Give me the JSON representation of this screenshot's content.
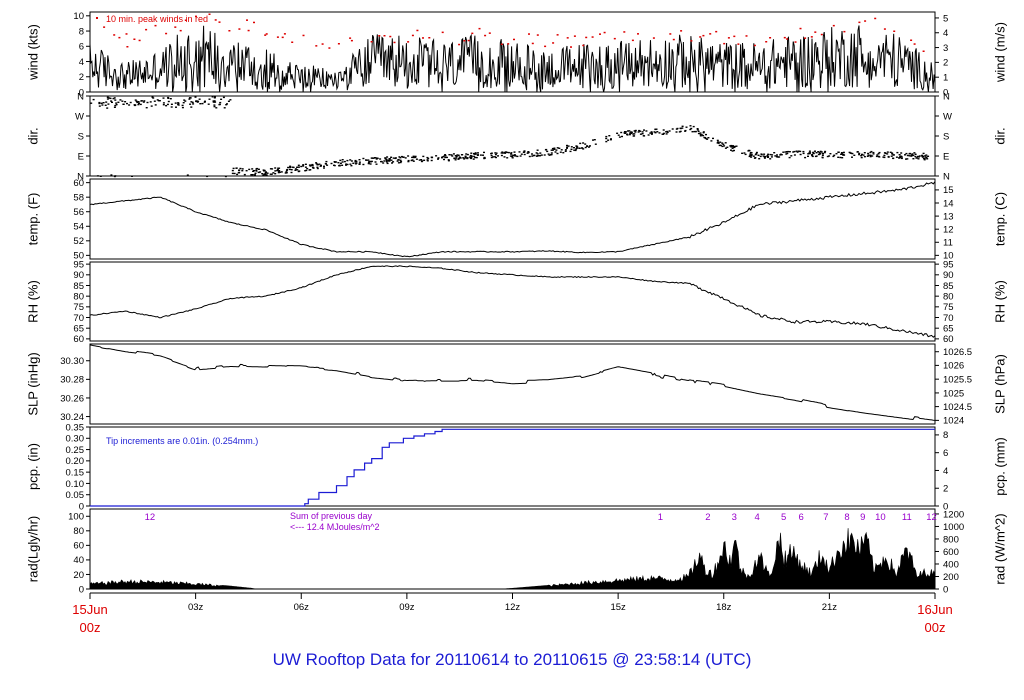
{
  "title": "UW Rooftop Data for 20110614  to  20110615 @ 23:58:14  (UTC)",
  "colors": {
    "axis": "#000000",
    "trace": "#000000",
    "peak": "#dd0000",
    "precip": "#1c1cd4",
    "annot": "#9900cc",
    "date": "#dd0000",
    "footer": "#1c1cd4"
  },
  "time_axis": {
    "range_hours": [
      0,
      24
    ],
    "ticks": [
      {
        "h": 3,
        "label": "03z"
      },
      {
        "h": 6,
        "label": "06z"
      },
      {
        "h": 9,
        "label": "09z"
      },
      {
        "h": 12,
        "label": "12z"
      },
      {
        "h": 15,
        "label": "15z"
      },
      {
        "h": 18,
        "label": "18z"
      },
      {
        "h": 21,
        "label": "21z"
      }
    ],
    "start_label": [
      "15Jun",
      "00z"
    ],
    "end_label": [
      "16Jun",
      "00z"
    ]
  },
  "chart_data": [
    {
      "id": "wind",
      "type": "line",
      "ylabel_left": "wind (kts)",
      "ylabel_right": "wind (m/s)",
      "ylim": [
        0,
        10.5
      ],
      "left_ticks": [
        0,
        2,
        4,
        6,
        8,
        10
      ],
      "right_ticks": [
        {
          "label": "0",
          "value": 0
        },
        {
          "label": "1",
          "value": 1.944
        },
        {
          "label": "2",
          "value": 3.888
        },
        {
          "label": "3",
          "value": 5.832
        },
        {
          "label": "4",
          "value": 7.776
        },
        {
          "label": "5",
          "value": 9.72
        }
      ],
      "annotation": "10 min. peak winds in red",
      "x": [
        0,
        1,
        2,
        3,
        4,
        5,
        6,
        7,
        8,
        9,
        10,
        11,
        12,
        13,
        14,
        15,
        16,
        17,
        18,
        19,
        20,
        21,
        22,
        23,
        24
      ],
      "values": [
        3.5,
        2,
        3,
        5,
        4,
        3,
        2,
        1.5,
        4,
        4,
        3.5,
        4,
        3.5,
        3,
        3.5,
        3.5,
        4,
        4,
        3.5,
        3.5,
        4,
        4.5,
        5,
        4,
        2
      ],
      "peak_values": [
        9,
        7,
        8,
        9.5,
        9,
        8,
        7,
        6,
        7.5,
        7.5,
        7,
        7.5,
        7,
        6.5,
        7,
        7,
        7.5,
        7.5,
        7,
        7,
        7.5,
        8.5,
        9.5,
        8,
        5
      ]
    },
    {
      "id": "dir",
      "type": "scatter",
      "ylabel_left": "dir.",
      "ylabel_right": "dir.",
      "ylim": [
        0,
        360
      ],
      "left_ticks": [
        {
          "label": "N",
          "value": 0
        },
        {
          "label": "E",
          "value": 90
        },
        {
          "label": "S",
          "value": 180
        },
        {
          "label": "W",
          "value": 270
        },
        {
          "label": "N",
          "value": 360
        }
      ],
      "right_ticks": [
        {
          "label": "N",
          "value": 0
        },
        {
          "label": "E",
          "value": 90
        },
        {
          "label": "S",
          "value": 180
        },
        {
          "label": "W",
          "value": 270
        },
        {
          "label": "N",
          "value": 360
        }
      ],
      "x": [
        0,
        1,
        2,
        3,
        4,
        5,
        6,
        7,
        8,
        9,
        10,
        11,
        12,
        13,
        14,
        15,
        16,
        17,
        18,
        19,
        20,
        21,
        22,
        23,
        24
      ],
      "values": [
        330,
        340,
        345,
        340,
        25,
        20,
        40,
        60,
        70,
        80,
        85,
        95,
        100,
        110,
        140,
        190,
        200,
        220,
        140,
        90,
        100,
        100,
        100,
        95,
        90
      ]
    },
    {
      "id": "temp",
      "type": "line",
      "ylabel_left": "temp. (F)",
      "ylabel_right": "temp. (C)",
      "ylim": [
        49.5,
        60.5
      ],
      "left_ticks": [
        50,
        52,
        54,
        56,
        58,
        60
      ],
      "right_ticks": [
        {
          "label": "10",
          "value": 50
        },
        {
          "label": "11",
          "value": 51.8
        },
        {
          "label": "12",
          "value": 53.6
        },
        {
          "label": "13",
          "value": 55.4
        },
        {
          "label": "14",
          "value": 57.2
        },
        {
          "label": "15",
          "value": 59
        }
      ],
      "x": [
        0,
        1,
        2,
        3,
        4,
        5,
        6,
        7,
        8,
        9,
        10,
        11,
        12,
        13,
        14,
        15,
        16,
        17,
        18,
        19,
        20,
        21,
        22,
        23,
        24
      ],
      "values": [
        57,
        57.5,
        58,
        56,
        54.5,
        53.5,
        51.5,
        50.5,
        50.5,
        49.8,
        50.5,
        50.5,
        50.5,
        50.6,
        50.4,
        50.5,
        51.5,
        52.5,
        54.5,
        57,
        57.5,
        58,
        58.5,
        59,
        60
      ]
    },
    {
      "id": "rh",
      "type": "line",
      "ylabel_left": "RH (%)",
      "ylabel_right": "RH (%)",
      "ylim": [
        59,
        96
      ],
      "left_ticks": [
        60,
        65,
        70,
        75,
        80,
        85,
        90,
        95
      ],
      "right_ticks": [
        {
          "label": "60",
          "value": 60
        },
        {
          "label": "65",
          "value": 65
        },
        {
          "label": "70",
          "value": 70
        },
        {
          "label": "75",
          "value": 75
        },
        {
          "label": "80",
          "value": 80
        },
        {
          "label": "85",
          "value": 85
        },
        {
          "label": "90",
          "value": 90
        },
        {
          "label": "95",
          "value": 95
        }
      ],
      "x": [
        0,
        1,
        2,
        3,
        4,
        5,
        6,
        7,
        8,
        9,
        10,
        11,
        12,
        13,
        14,
        15,
        16,
        17,
        18,
        19,
        20,
        21,
        22,
        23,
        24
      ],
      "values": [
        71,
        73,
        70,
        74,
        79,
        80,
        84,
        90,
        94,
        94,
        93,
        91,
        90,
        89,
        89,
        89,
        87,
        86,
        79,
        71,
        68,
        68,
        67,
        64,
        61
      ]
    },
    {
      "id": "slp",
      "type": "line",
      "ylabel_left": "SLP (inHg)",
      "ylabel_right": "SLP (hPa)",
      "ylim": [
        30.232,
        30.318
      ],
      "left_ticks": [
        {
          "label": "30.24",
          "value": 30.24
        },
        {
          "label": "30.26",
          "value": 30.26
        },
        {
          "label": "30.28",
          "value": 30.28
        },
        {
          "label": "30.30",
          "value": 30.3
        }
      ],
      "right_ticks": [
        {
          "label": "1024",
          "value": 30.2359
        },
        {
          "label": "1024.5",
          "value": 30.2507
        },
        {
          "label": "1025",
          "value": 30.2654
        },
        {
          "label": "1025.5",
          "value": 30.2802
        },
        {
          "label": "1026",
          "value": 30.295
        },
        {
          "label": "1026.5",
          "value": 30.3097
        }
      ],
      "x": [
        0,
        1,
        2,
        3,
        4,
        5,
        6,
        7,
        8,
        9,
        10,
        11,
        12,
        13,
        14,
        15,
        16,
        17,
        18,
        19,
        20,
        21,
        22,
        23,
        24
      ],
      "values": [
        30.317,
        30.31,
        30.305,
        30.292,
        30.295,
        30.294,
        30.293,
        30.29,
        30.283,
        30.279,
        30.28,
        30.28,
        30.277,
        30.278,
        30.282,
        30.292,
        30.285,
        30.278,
        30.273,
        30.265,
        30.259,
        30.251,
        30.245,
        30.24,
        30.235
      ]
    },
    {
      "id": "pcp",
      "type": "line",
      "ylabel_left": "pcp. (in)",
      "ylabel_right": "pcp. (mm)",
      "ylim": [
        0,
        0.35
      ],
      "left_ticks": [
        {
          "label": "0",
          "value": 0
        },
        {
          "label": "0.05",
          "value": 0.05
        },
        {
          "label": "0.10",
          "value": 0.1
        },
        {
          "label": "0.15",
          "value": 0.15
        },
        {
          "label": "0.20",
          "value": 0.2
        },
        {
          "label": "0.25",
          "value": 0.25
        },
        {
          "label": "0.30",
          "value": 0.3
        },
        {
          "label": "0.35",
          "value": 0.35
        }
      ],
      "right_ticks": [
        {
          "label": "0",
          "value": 0
        },
        {
          "label": "2",
          "value": 0.0787
        },
        {
          "label": "4",
          "value": 0.1575
        },
        {
          "label": "6",
          "value": 0.2362
        },
        {
          "label": "8",
          "value": 0.315
        }
      ],
      "annotation": "Tip increments are 0.01in. (0.254mm.)",
      "x": [
        0,
        6.0,
        6.1,
        6.2,
        6.5,
        7.0,
        7.3,
        7.5,
        7.8,
        8.0,
        8.3,
        8.5,
        8.9,
        9.2,
        9.5,
        9.8,
        10.0,
        24
      ],
      "values": [
        0,
        0,
        0.01,
        0.03,
        0.06,
        0.09,
        0.13,
        0.16,
        0.19,
        0.21,
        0.26,
        0.28,
        0.3,
        0.31,
        0.32,
        0.33,
        0.34,
        0.34
      ]
    },
    {
      "id": "rad",
      "type": "area",
      "ylabel_left": "rad(Lgly/hr)",
      "ylabel_right": "rad (W/m^2)",
      "ylim": [
        0,
        110
      ],
      "left_ticks": [
        0,
        20,
        40,
        60,
        80,
        100
      ],
      "right_ticks": [
        {
          "label": "0",
          "value": 0
        },
        {
          "label": "200",
          "value": 17.2
        },
        {
          "label": "400",
          "value": 34.4
        },
        {
          "label": "600",
          "value": 51.6
        },
        {
          "label": "800",
          "value": 68.8
        },
        {
          "label": "1000",
          "value": 86
        },
        {
          "label": "1200",
          "value": 103.2
        }
      ],
      "annotation_lines": [
        "Sum of previous day",
        "<--- 12.4 MJoules/m^2"
      ],
      "hour_labels": [
        {
          "h": 1.7,
          "label": "12"
        },
        {
          "h": 16.2,
          "label": "1"
        },
        {
          "h": 17.55,
          "label": "2"
        },
        {
          "h": 18.3,
          "label": "3"
        },
        {
          "h": 18.95,
          "label": "4"
        },
        {
          "h": 19.7,
          "label": "5"
        },
        {
          "h": 20.2,
          "label": "6"
        },
        {
          "h": 20.9,
          "label": "7"
        },
        {
          "h": 21.5,
          "label": "8"
        },
        {
          "h": 21.95,
          "label": "9"
        },
        {
          "h": 22.45,
          "label": "10"
        },
        {
          "h": 23.2,
          "label": "11"
        },
        {
          "h": 23.9,
          "label": "12"
        }
      ],
      "x": [
        0,
        0.5,
        1,
        2,
        3,
        4,
        4.6,
        4.7,
        11.7,
        12,
        13,
        14,
        15,
        16,
        16.5,
        17,
        17.3,
        17.5,
        17.7,
        18,
        18.2,
        18.3,
        18.5,
        18.7,
        19,
        19.3,
        19.6,
        19.7,
        20,
        20.2,
        20.5,
        20.8,
        21,
        21.3,
        21.6,
        21.9,
        22,
        22.3,
        22.6,
        22.9,
        23.2,
        23.5,
        23.8,
        24
      ],
      "values": [
        8,
        10,
        12,
        11,
        8,
        4,
        1,
        0,
        0,
        1,
        5,
        10,
        14,
        18,
        15,
        20,
        55,
        30,
        25,
        70,
        45,
        80,
        30,
        20,
        55,
        20,
        85,
        50,
        60,
        40,
        25,
        60,
        30,
        70,
        80,
        65,
        85,
        30,
        55,
        25,
        65,
        20,
        30,
        22
      ]
    }
  ]
}
